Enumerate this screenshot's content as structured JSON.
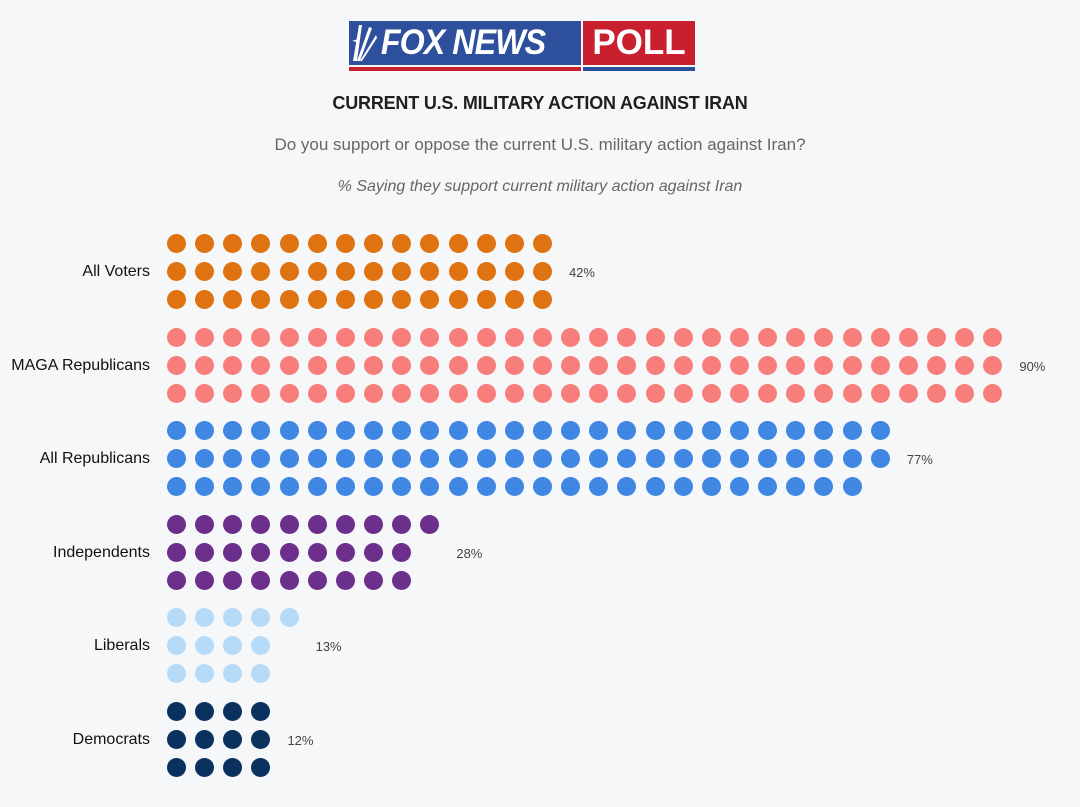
{
  "logo": {
    "brand": "FOX NEWS",
    "product": "POLL",
    "colors": {
      "blue": "#2d4f9c",
      "red": "#c8202f"
    }
  },
  "header": {
    "title": "CURRENT U.S. MILITARY ACTION AGAINST IRAN",
    "question": "Do you support or oppose the current U.S. military action against Iran?",
    "note": "% Saying they support current military action against Iran"
  },
  "chart_data": {
    "type": "bar",
    "subtype": "dot-matrix (pictogram), 1 dot = 1%",
    "title": "CURRENT U.S. MILITARY ACTION AGAINST IRAN",
    "subtitle": "Do you support or oppose the current U.S. military action against Iran?",
    "ylabel": "% Saying they support current military action against Iran",
    "xlabel": "",
    "categories": [
      "All Voters",
      "MAGA Republicans",
      "All Republicans",
      "Independents",
      "Liberals",
      "Democrats"
    ],
    "values": [
      42,
      90,
      77,
      28,
      13,
      12
    ],
    "value_labels": [
      "42%",
      "90%",
      "77%",
      "28%",
      "13%",
      "12%"
    ],
    "row_splits": [
      [
        14,
        14,
        14
      ],
      [
        30,
        30,
        30
      ],
      [
        26,
        26,
        25
      ],
      [
        10,
        9,
        9
      ],
      [
        5,
        4,
        4
      ],
      [
        4,
        4,
        4
      ]
    ],
    "colors": [
      "#e07311",
      "#f87e7b",
      "#3f87e2",
      "#6d2f8c",
      "#b5dbf9",
      "#0b325f"
    ],
    "grid": false,
    "legend": "none"
  },
  "groups": [
    {
      "label": "All Voters",
      "pct": "42%",
      "color": "#e07311",
      "rows": [
        14,
        14,
        14
      ]
    },
    {
      "label": "MAGA Republicans",
      "pct": "90%",
      "color": "#f87e7b",
      "rows": [
        30,
        30,
        30
      ]
    },
    {
      "label": "All Republicans",
      "pct": "77%",
      "color": "#3f87e2",
      "rows": [
        26,
        26,
        25
      ]
    },
    {
      "label": "Independents",
      "pct": "28%",
      "color": "#6d2f8c",
      "rows": [
        10,
        9,
        9
      ]
    },
    {
      "label": "Liberals",
      "pct": "13%",
      "color": "#b5dbf9",
      "rows": [
        5,
        4,
        4
      ]
    },
    {
      "label": "Democrats",
      "pct": "12%",
      "color": "#0b325f",
      "rows": [
        4,
        4,
        4
      ]
    }
  ]
}
